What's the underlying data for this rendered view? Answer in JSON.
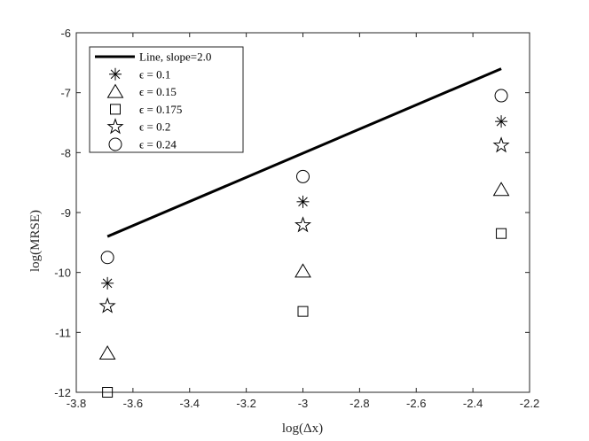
{
  "chart_data": {
    "type": "scatter",
    "xlabel": "log(Δx)",
    "ylabel": "log(MRSE)",
    "xlim": [
      -3.8,
      -2.2
    ],
    "ylim": [
      -12,
      -6
    ],
    "xticks": [
      -3.8,
      -3.6,
      -3.4,
      -3.2,
      -3,
      -2.8,
      -2.6,
      -2.4,
      -2.2
    ],
    "yticks": [
      -12,
      -11,
      -10,
      -9,
      -8,
      -7,
      -6
    ],
    "xtick_labels": [
      "-3.8",
      "-3.6",
      "-3.4",
      "-3.2",
      "-3",
      "-2.8",
      "-2.6",
      "-2.4",
      "-2.2"
    ],
    "ytick_labels": [
      "-12",
      "-11",
      "-10",
      "-9",
      "-8",
      "-7",
      "-6"
    ],
    "grid": false,
    "legend_position": "top-left",
    "series": [
      {
        "name": "Line, slope=2.0",
        "kind": "line",
        "marker": "none",
        "color": "#000000",
        "x": [
          -3.69,
          -2.3
        ],
        "y": [
          -9.4,
          -6.6
        ]
      },
      {
        "name": "ϵ = 0.1",
        "kind": "scatter",
        "marker": "asterisk",
        "x": [
          -3.69,
          -3.0,
          -2.3
        ],
        "y": [
          -10.18,
          -8.82,
          -7.48
        ]
      },
      {
        "name": "ϵ = 0.15",
        "kind": "scatter",
        "marker": "triangle",
        "x": [
          -3.69,
          -3.0,
          -2.3
        ],
        "y": [
          -11.35,
          -9.98,
          -8.62
        ]
      },
      {
        "name": "ϵ = 0.175",
        "kind": "scatter",
        "marker": "square",
        "x": [
          -3.69,
          -3.0,
          -2.3
        ],
        "y": [
          -12.0,
          -10.65,
          -9.35
        ]
      },
      {
        "name": "ϵ = 0.2",
        "kind": "scatter",
        "marker": "star",
        "x": [
          -3.69,
          -3.0,
          -2.3
        ],
        "y": [
          -10.56,
          -9.21,
          -7.88
        ]
      },
      {
        "name": "ϵ = 0.24",
        "kind": "scatter",
        "marker": "circle",
        "x": [
          -3.69,
          -3.0,
          -2.3
        ],
        "y": [
          -9.75,
          -8.4,
          -7.05
        ]
      }
    ]
  }
}
